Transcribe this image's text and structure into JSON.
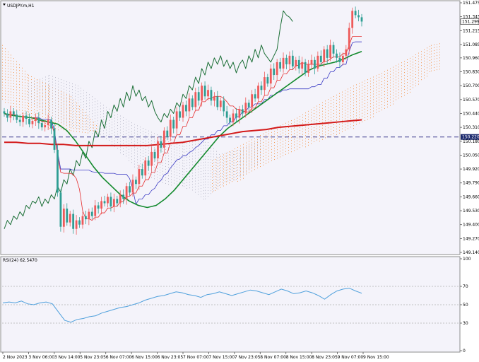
{
  "chart_data": {
    "type": "candlestick",
    "title": "USDJPY.m,H1",
    "colors": {
      "background": "#f4f3fa",
      "bull": "#ee5a5a",
      "bear": "#2e9e93",
      "ma_green": "#138a2d",
      "ma_red": "#d31a1a",
      "chikou": "#1a6e35",
      "kijun": "#e52c2c",
      "tenkan": "#3a3ac4",
      "cloud_bull": "#f39a55",
      "cloud_bear": "#b9b9c9",
      "hline": "#3b3b8c",
      "rsi": "#4fa0dc",
      "grid": "#cfcfcf"
    },
    "price_axis": {
      "min": 149.14,
      "max": 151.475,
      "ticks": [
        "151.475",
        "151.345",
        "151.215",
        "151.085",
        "150.960",
        "150.830",
        "150.700",
        "150.570",
        "150.440",
        "150.310",
        "150.180",
        "150.050",
        "149.920",
        "149.790",
        "149.660",
        "149.530",
        "149.400",
        "149.270",
        "149.140"
      ]
    },
    "current_price": {
      "value": 151.299,
      "label": "151.299"
    },
    "horizontal_line": {
      "value": 150.22,
      "label": "150.220"
    },
    "x_labels": [
      "2 Nov 2023",
      "3 Nov 06:00",
      "3 Nov 14:00",
      "5 Nov 23:05",
      "6 Nov 07:00",
      "6 Nov 15:00",
      "6 Nov 23:05",
      "7 Nov 07:00",
      "7 Nov 15:00",
      "7 Nov 23:05",
      "8 Nov 07:00",
      "8 Nov 15:00",
      "8 Nov 23:05",
      "9 Nov 07:00",
      "9 Nov 15:00"
    ],
    "candles_close": [
      150.44,
      150.4,
      150.46,
      150.43,
      150.38,
      150.36,
      150.42,
      150.39,
      150.34,
      150.37,
      150.4,
      150.35,
      150.31,
      150.33,
      150.38,
      150.3,
      150.1,
      149.7,
      149.38,
      149.55,
      149.42,
      149.5,
      149.36,
      149.44,
      149.4,
      149.48,
      149.45,
      149.52,
      149.48,
      149.58,
      149.55,
      149.62,
      149.6,
      149.66,
      149.57,
      149.64,
      149.6,
      149.68,
      149.64,
      149.76,
      149.7,
      149.82,
      149.78,
      149.92,
      149.86,
      150.0,
      149.95,
      150.08,
      150.02,
      150.18,
      150.12,
      150.28,
      150.22,
      150.38,
      150.3,
      150.46,
      150.4,
      150.52,
      150.46,
      150.58,
      150.5,
      150.64,
      150.56,
      150.7,
      150.6,
      150.66,
      150.56,
      150.6,
      150.5,
      150.56,
      150.46,
      150.4,
      150.36,
      150.44,
      150.4,
      150.48,
      150.44,
      150.54,
      150.5,
      150.62,
      150.58,
      150.7,
      150.66,
      150.78,
      150.72,
      150.86,
      150.8,
      150.92,
      150.86,
      150.96,
      150.9,
      150.98,
      150.88,
      150.94,
      150.86,
      150.92,
      150.82,
      150.9,
      150.94,
      150.86,
      150.98,
      150.92,
      151.04,
      150.96,
      151.08,
      151.0,
      150.96,
      150.92,
      150.98,
      151.04,
      151.24,
      151.4,
      151.36,
      151.34,
      151.3
    ],
    "series": [
      {
        "name": "",
        "type": "line",
        "color": "green",
        "values": [
          150.44,
          150.42,
          150.41,
          150.4,
          150.38,
          150.36,
          150.34,
          150.28,
          150.18,
          150.06,
          149.94,
          149.84,
          149.76,
          149.68,
          149.62,
          149.58,
          149.56,
          149.58,
          149.64,
          149.72,
          149.82,
          149.92,
          150.02,
          150.12,
          150.22,
          150.3,
          150.36,
          150.42,
          150.48,
          150.54,
          150.6,
          150.66,
          150.72,
          150.78,
          150.84,
          150.88,
          150.9,
          150.92,
          150.95,
          150.99,
          151.02
        ]
      },
      {
        "name": "",
        "type": "line",
        "color": "red",
        "values": [
          150.17,
          150.17,
          150.16,
          150.16,
          150.15,
          150.15,
          150.14,
          150.14,
          150.14,
          150.14,
          150.14,
          150.14,
          150.14,
          150.15,
          150.16,
          150.17,
          150.19,
          150.21,
          150.23,
          150.25,
          150.27,
          150.28,
          150.29,
          150.31,
          150.32,
          150.33,
          150.34,
          150.35,
          150.36,
          150.37,
          150.38
        ]
      }
    ],
    "rsi": {
      "label": "RSI(24) 62.5470",
      "ylim": [
        0,
        100
      ],
      "ticks": [
        "100",
        "70",
        "50",
        "30",
        "0"
      ],
      "values": [
        52,
        53,
        52,
        54,
        51,
        50,
        52,
        53,
        51,
        42,
        33,
        31,
        34,
        35,
        37,
        38,
        41,
        43,
        45,
        47,
        48,
        50,
        52,
        55,
        57,
        59,
        60,
        62,
        64,
        63,
        61,
        60,
        58,
        61,
        62,
        64,
        62,
        60,
        62,
        64,
        66,
        65,
        63,
        61,
        64,
        67,
        65,
        62,
        63,
        65,
        63,
        60,
        56,
        61,
        65,
        67,
        68,
        65,
        62.5
      ]
    }
  }
}
